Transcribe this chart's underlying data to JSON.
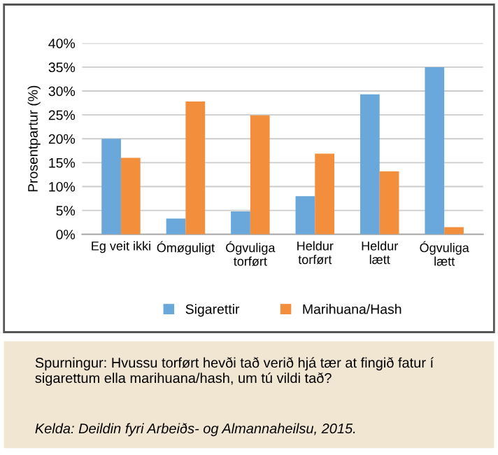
{
  "chart_data": {
    "type": "bar",
    "ylabel": "Prosentpartur (%)",
    "categories": [
      "Eg veit ikki",
      "Ómøguligt",
      "Ógvuliga\ntorført",
      "Heldur\ntorført",
      "Heldur\nlætt",
      "Ógvuliga\nlætt"
    ],
    "series": [
      {
        "name": "Sigarettir",
        "color": "#6aa8dc",
        "values": [
          20,
          3.3,
          4.8,
          8,
          29.3,
          35
        ]
      },
      {
        "name": "Marihuana/Hash",
        "color": "#f28e3c",
        "values": [
          16,
          27.8,
          24.9,
          16.9,
          13.2,
          1.5
        ]
      }
    ],
    "ylim": [
      0,
      40
    ],
    "yticks": [
      {
        "value": 0,
        "label": "0%"
      },
      {
        "value": 5,
        "label": "5%"
      },
      {
        "value": 10,
        "label": "10%"
      },
      {
        "value": 15,
        "label": "15%"
      },
      {
        "value": 20,
        "label": "20%"
      },
      {
        "value": 25,
        "label": "25%"
      },
      {
        "value": 30,
        "label": "30%"
      },
      {
        "value": 35,
        "label": "35%"
      },
      {
        "value": 40,
        "label": "40%"
      }
    ],
    "grid": "y",
    "legend": "bottom",
    "annotations": [
      "Spurningur: Hvussu torført hevði tað verið hjá tær at fingið fatur í sigarettum ella marihuana/hash, um tú vildi tað?",
      "Kelda: Deildin fyri Arbeiðs- og Almannaheilsu, 2015."
    ]
  }
}
